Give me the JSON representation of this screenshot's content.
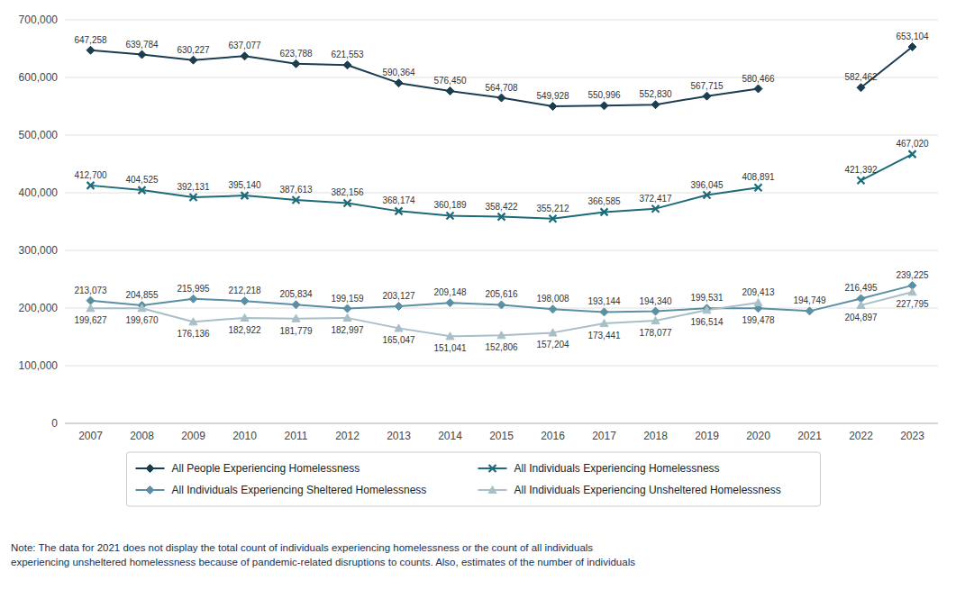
{
  "chart_data": {
    "type": "line",
    "categories": [
      "2007",
      "2008",
      "2009",
      "2010",
      "2011",
      "2012",
      "2013",
      "2014",
      "2015",
      "2016",
      "2017",
      "2018",
      "2019",
      "2020",
      "2021",
      "2022",
      "2023"
    ],
    "series": [
      {
        "name": "All People Experiencing Homelessness",
        "color": "#1b3d4f",
        "marker": "diamond",
        "values": [
          647258,
          639784,
          630227,
          637077,
          623788,
          621553,
          590364,
          576450,
          564708,
          549928,
          550996,
          552830,
          567715,
          580466,
          null,
          582462,
          653104
        ],
        "value_labels": [
          "647,258",
          "639,784",
          "630,227",
          "637,077",
          "623,788",
          "621,553",
          "590,364",
          "576,450",
          "564,708",
          "549,928",
          "550,996",
          "552,830",
          "567,715",
          "580,466",
          null,
          "582,462",
          "653,104"
        ]
      },
      {
        "name": "All Individuals Experiencing Homelessness",
        "color": "#1d6b78",
        "marker": "x",
        "values": [
          412700,
          404525,
          392131,
          395140,
          387613,
          382156,
          368174,
          360189,
          358422,
          355212,
          366585,
          372417,
          396045,
          408891,
          null,
          421392,
          467020
        ],
        "value_labels": [
          "412,700",
          "404,525",
          "392,131",
          "395,140",
          "387,613",
          "382,156",
          "368,174",
          "360,189",
          "358,422",
          "355,212",
          "366,585",
          "372,417",
          "396,045",
          "408,891",
          null,
          "421,392",
          "467,020"
        ]
      },
      {
        "name": "All Individuals Experiencing Sheltered Homelessness",
        "color": "#5b8fa3",
        "marker": "diamond",
        "values": [
          213073,
          204855,
          215995,
          212218,
          205834,
          199159,
          203127,
          209148,
          205616,
          198008,
          193144,
          194340,
          199531,
          199478,
          194749,
          216495,
          239225
        ],
        "value_labels": [
          "213,073",
          "204,855",
          "215,995",
          "212,218",
          "205,834",
          "199,159",
          "203,127",
          "209,148",
          "205,616",
          "198,008",
          "193,144",
          "194,340",
          "199,531",
          "199,478",
          "194,749",
          "216,495",
          "239,225"
        ]
      },
      {
        "name": "All Individuals Experiencing Unsheltered Homelessness",
        "color": "#a8bfc7",
        "marker": "triangle",
        "values": [
          199627,
          199670,
          176136,
          182922,
          181779,
          182997,
          165047,
          151041,
          152806,
          157204,
          173441,
          178077,
          196514,
          209413,
          null,
          204897,
          227795
        ],
        "value_labels": [
          "199,627",
          "199,670",
          "176,136",
          "182,922",
          "181,779",
          "182,997",
          "165,047",
          "151,041",
          "152,806",
          "157,204",
          "173,441",
          "178,077",
          "196,514",
          "209,413",
          null,
          "204,897",
          "227,795"
        ]
      }
    ],
    "ylim": [
      0,
      700000
    ],
    "yticks": [
      0,
      {
        "value": 100000,
        "label": "100,000"
      },
      {
        "value": 200000,
        "label": "200,000"
      },
      {
        "value": 300000,
        "label": "300,000"
      },
      {
        "value": 400000,
        "label": "400,000"
      },
      {
        "value": 500000,
        "label": "500,000"
      },
      {
        "value": 600000,
        "label": "600,000"
      },
      {
        "value": 700000,
        "label": "700,000"
      }
    ],
    "grid": true,
    "legend": "bottom",
    "data_labels": true,
    "annotations": [
      "Note: The data for 2021 does not display the total count of individuals experiencing homelessness or the count of all individuals\nexperiencing unsheltered homelessness because of pandemic-related disruptions to counts.  Also, estimates of the number of individuals"
    ]
  }
}
